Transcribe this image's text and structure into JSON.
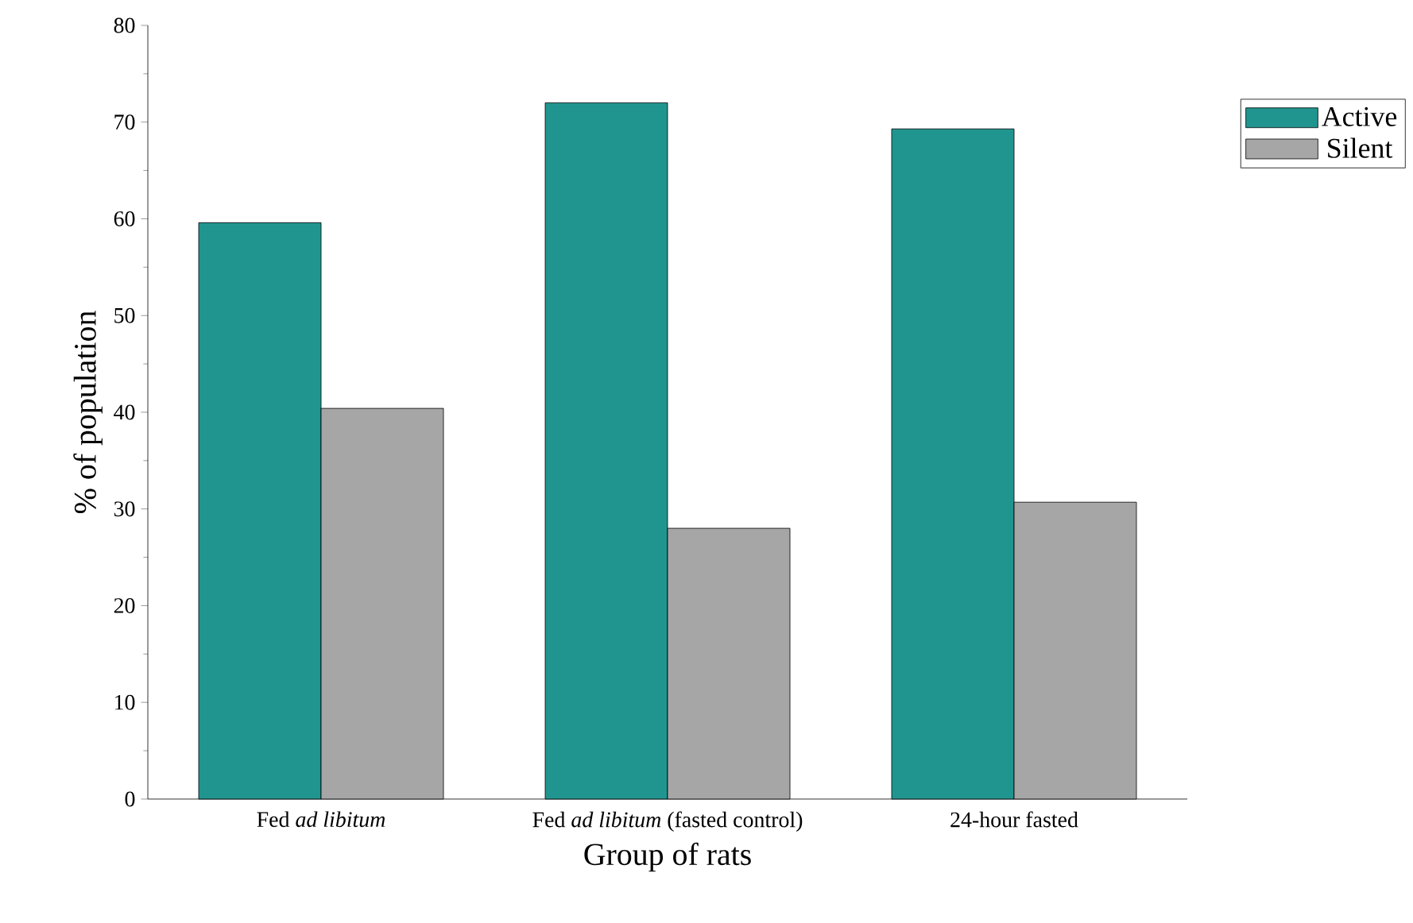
{
  "chart_data": {
    "type": "bar",
    "xlabel": "Group of rats",
    "ylabel": "% of population",
    "categories": [
      "Fed *ad libitum*",
      "Fed *ad libitum* (fasted control)",
      "24-hour fasted"
    ],
    "series": [
      {
        "name": "Active",
        "color": "#20958f",
        "values": [
          59.6,
          72.0,
          69.3
        ]
      },
      {
        "name": "Silent",
        "color": "#a6a6a6",
        "values": [
          40.4,
          28.0,
          30.7
        ]
      }
    ],
    "ylim": [
      0,
      80
    ],
    "yticks": [
      0,
      10,
      20,
      30,
      40,
      50,
      60,
      70,
      80
    ],
    "grid": false,
    "legend": "top right"
  }
}
